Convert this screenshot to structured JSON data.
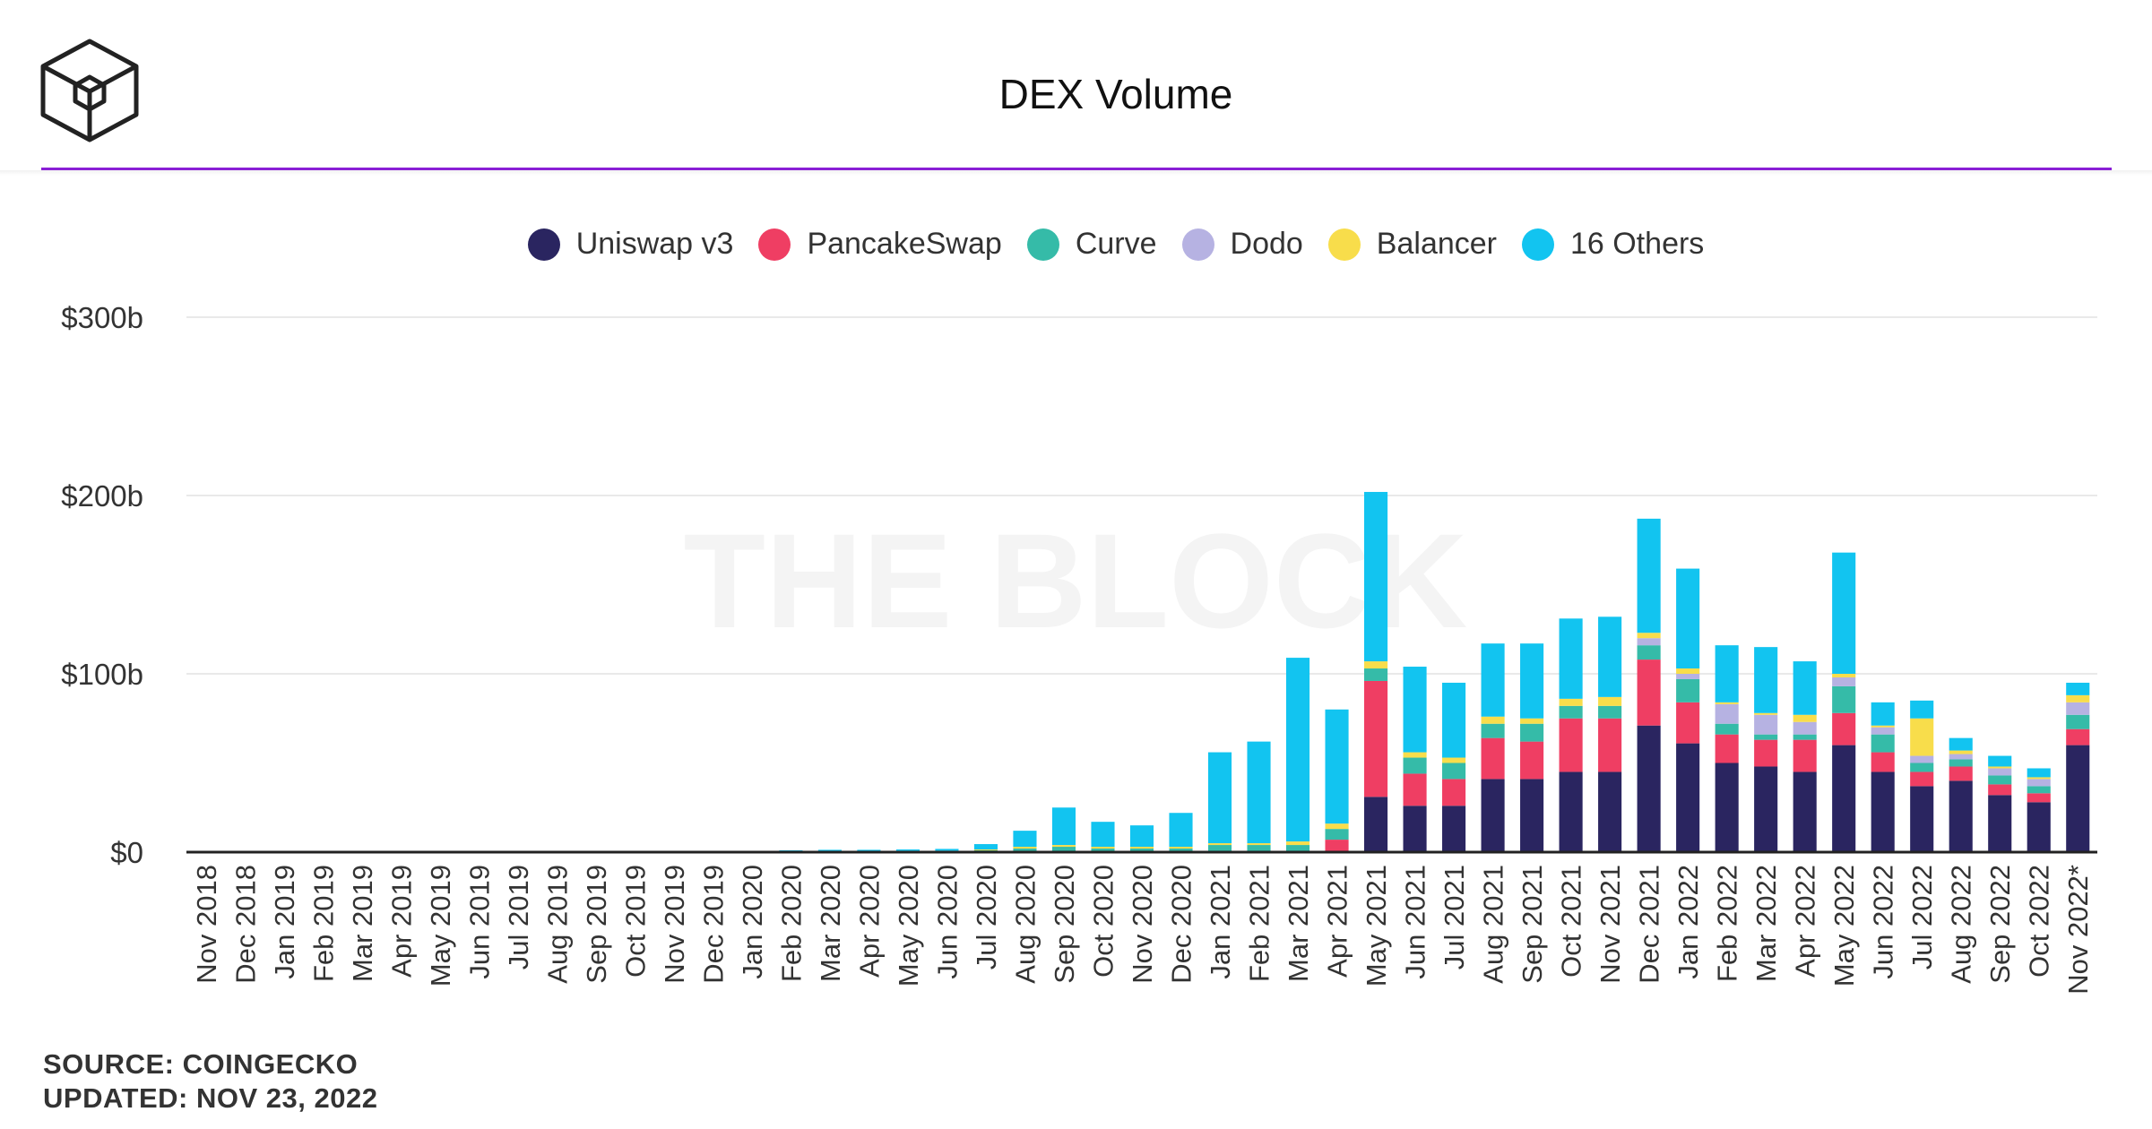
{
  "title": "DEX Volume",
  "footer": {
    "source": "SOURCE: COINGECKO",
    "updated": "UPDATED: NOV 23, 2022"
  },
  "watermark": "THE BLOCK",
  "colors": {
    "accent_rule": "#8a1fd6",
    "grid": "#e9e9e9",
    "axis": "#222222"
  },
  "chart_data": {
    "type": "bar",
    "stacked": true,
    "title": "DEX Volume",
    "xlabel": "",
    "ylabel": "",
    "ylim": [
      0,
      300
    ],
    "y_unit": "billions USD",
    "yticks": [
      0,
      100,
      200,
      300
    ],
    "ytick_labels": [
      "$0",
      "$100b",
      "$200b",
      "$300b"
    ],
    "legend_position": "top-center",
    "categories": [
      "Nov 2018",
      "Dec 2018",
      "Jan 2019",
      "Feb 2019",
      "Mar 2019",
      "Apr 2019",
      "May 2019",
      "Jun 2019",
      "Jul 2019",
      "Aug 2019",
      "Sep 2019",
      "Oct 2019",
      "Nov 2019",
      "Dec 2019",
      "Jan 2020",
      "Feb 2020",
      "Mar 2020",
      "Apr 2020",
      "May 2020",
      "Jun 2020",
      "Jul 2020",
      "Aug 2020",
      "Sep 2020",
      "Oct 2020",
      "Nov 2020",
      "Dec 2020",
      "Jan 2021",
      "Feb 2021",
      "Mar 2021",
      "Apr 2021",
      "May 2021",
      "Jun 2021",
      "Jul 2021",
      "Aug 2021",
      "Sep 2021",
      "Oct 2021",
      "Nov 2021",
      "Dec 2021",
      "Jan 2022",
      "Feb 2022",
      "Mar 2022",
      "Apr 2022",
      "May 2022",
      "Jun 2022",
      "Jul 2022",
      "Aug 2022",
      "Sep 2022",
      "Oct 2022",
      "Nov 2022*"
    ],
    "series": [
      {
        "name": "Uniswap v3",
        "color": "#2a2560",
        "values": [
          0,
          0,
          0,
          0,
          0,
          0,
          0,
          0,
          0,
          0,
          0,
          0,
          0,
          0,
          0,
          0,
          0,
          0,
          0,
          0,
          0,
          0,
          0,
          0,
          0,
          0,
          0,
          0,
          0,
          0,
          31,
          26,
          26,
          41,
          41,
          45,
          45,
          71,
          61,
          50,
          48,
          45,
          60,
          45,
          37,
          40,
          32,
          28,
          60
        ]
      },
      {
        "name": "PancakeSwap",
        "color": "#ef3e63",
        "values": [
          0,
          0,
          0,
          0,
          0,
          0,
          0,
          0,
          0,
          0,
          0,
          0,
          0,
          0,
          0,
          0,
          0,
          0,
          0,
          0,
          0,
          0,
          0,
          0,
          0,
          0,
          0,
          0,
          0,
          7,
          65,
          18,
          15,
          23,
          21,
          30,
          30,
          37,
          23,
          16,
          15,
          18,
          18,
          11,
          8,
          8,
          6,
          5,
          9
        ]
      },
      {
        "name": "Curve",
        "color": "#35bba8",
        "values": [
          0,
          0,
          0,
          0,
          0,
          0,
          0,
          0,
          0,
          0,
          0,
          0,
          0,
          0,
          0.3,
          0.4,
          0.5,
          0.5,
          0.5,
          0.5,
          1,
          2,
          3,
          2,
          2,
          2,
          4,
          4,
          4,
          6,
          7,
          9,
          9,
          8,
          10,
          7,
          7,
          8,
          13,
          6,
          3,
          3,
          15,
          10,
          5,
          4,
          5,
          4,
          8
        ]
      },
      {
        "name": "Dodo",
        "color": "#b6b2e2",
        "values": [
          0,
          0,
          0,
          0,
          0,
          0,
          0,
          0,
          0,
          0,
          0,
          0,
          0,
          0,
          0,
          0,
          0,
          0,
          0,
          0,
          0,
          0,
          0,
          0,
          0,
          0,
          0,
          0,
          0,
          0,
          0,
          0,
          0,
          0,
          0,
          0,
          0,
          4,
          3,
          11,
          11,
          7,
          5,
          4,
          4,
          3,
          4,
          4,
          7
        ]
      },
      {
        "name": "Balancer",
        "color": "#f8dd4b",
        "values": [
          0,
          0,
          0,
          0,
          0,
          0,
          0,
          0,
          0,
          0,
          0,
          0,
          0,
          0,
          0,
          0,
          0,
          0,
          0.3,
          0.3,
          0.5,
          1,
          1,
          1,
          1,
          1,
          1,
          1,
          2,
          3,
          4,
          3,
          3,
          4,
          3,
          4,
          5,
          3,
          3,
          1,
          1,
          4,
          2,
          1,
          21,
          2,
          1,
          1,
          4
        ]
      },
      {
        "name": "16 Others",
        "color": "#12c4f0",
        "values": [
          0,
          0,
          0,
          0,
          0,
          0,
          0,
          0,
          0,
          0,
          0,
          0,
          0,
          0,
          0.2,
          0.6,
          0.8,
          0.8,
          0.7,
          1,
          3,
          9,
          21,
          14,
          12,
          19,
          51,
          57,
          103,
          64,
          95,
          48,
          42,
          41,
          42,
          45,
          45,
          64,
          56,
          32,
          37,
          30,
          68,
          13,
          10,
          7,
          6,
          5,
          7
        ]
      }
    ]
  }
}
